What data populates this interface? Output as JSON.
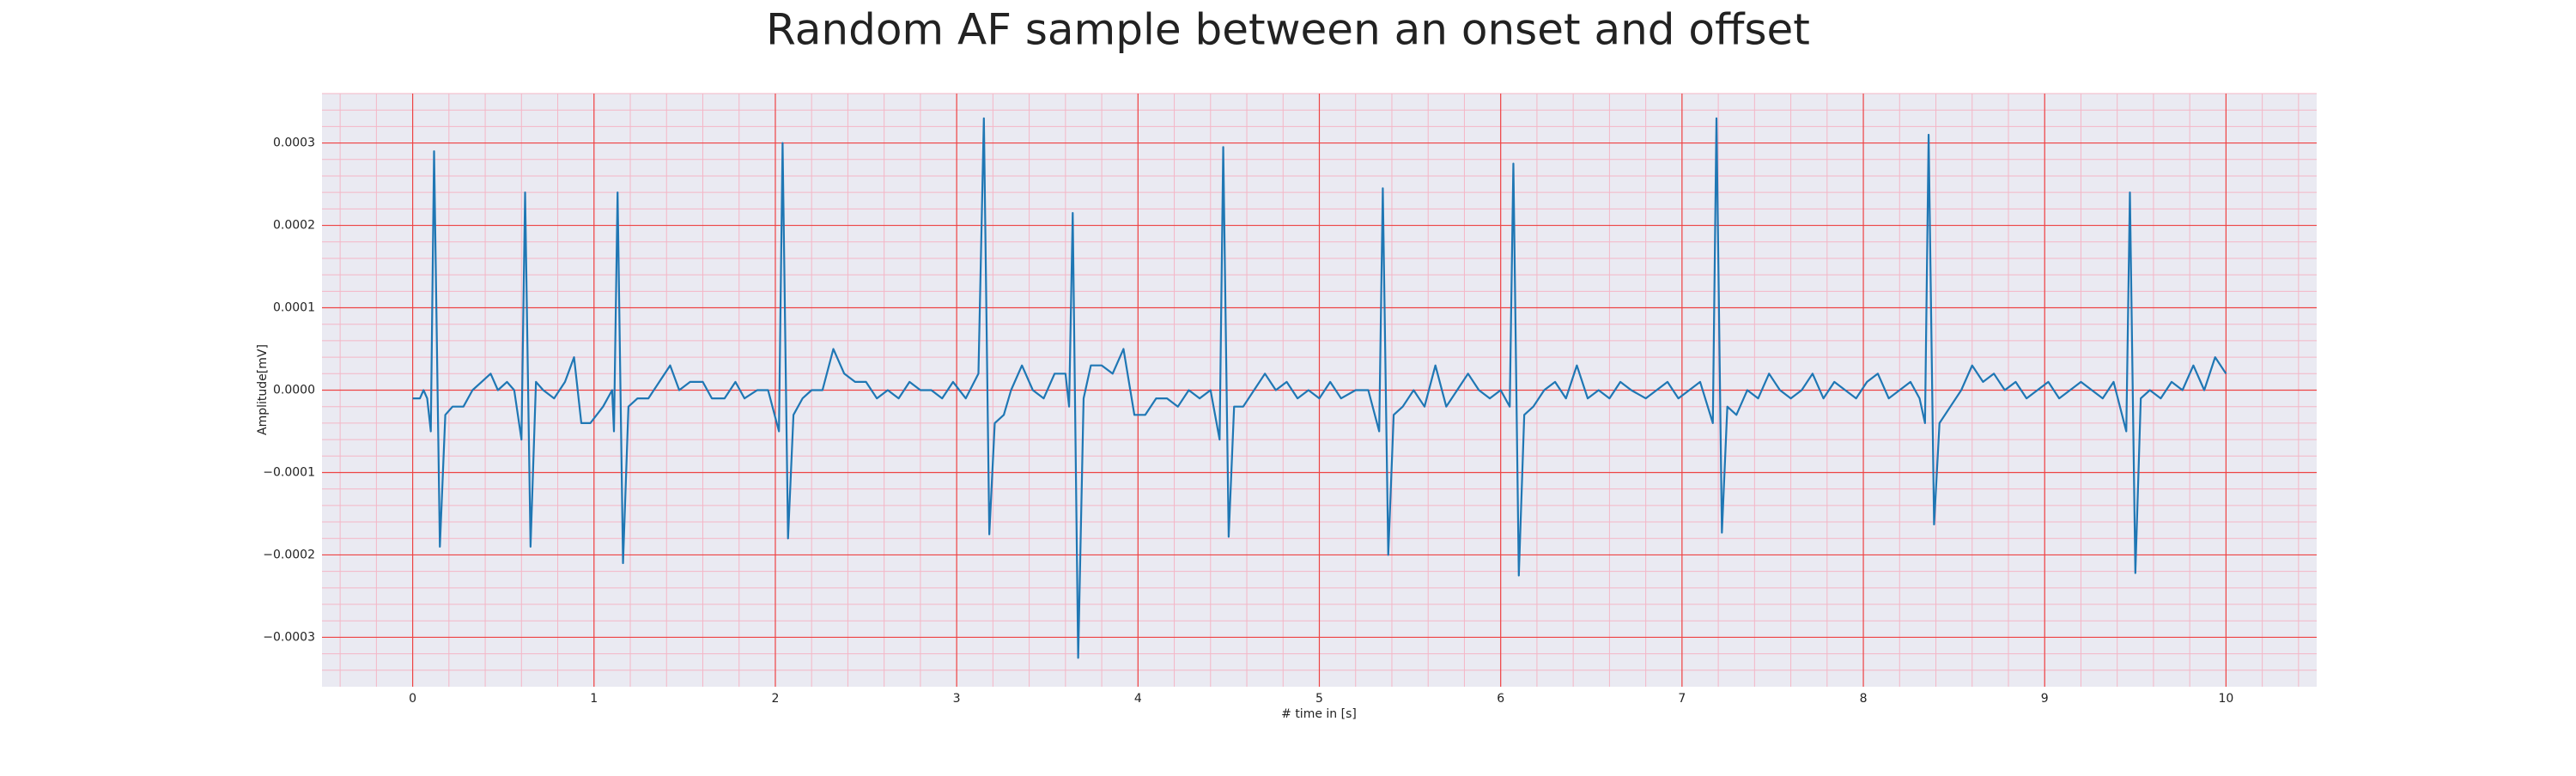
{
  "chart_data": {
    "type": "line",
    "title": "Random AF sample between an onset and offset",
    "xlabel": "# time in [s]",
    "ylabel": "Amplitude[mV]",
    "xlim": [
      -0.5,
      10.5
    ],
    "ylim": [
      -0.00036,
      0.00036
    ],
    "xticks": [
      0,
      1,
      2,
      3,
      4,
      5,
      6,
      7,
      8,
      9,
      10
    ],
    "yticks": [
      {
        "value": -0.0003,
        "label": "−0.0003"
      },
      {
        "value": -0.0002,
        "label": "−0.0002"
      },
      {
        "value": -0.0001,
        "label": "−0.0001"
      },
      {
        "value": 0,
        "label": "0.0000"
      },
      {
        "value": 0.0001,
        "label": "0.0001"
      },
      {
        "value": 0.0002,
        "label": "0.0002"
      },
      {
        "value": 0.0003,
        "label": "0.0003"
      }
    ],
    "grid": true,
    "minor_grid": true,
    "grid_color": "#ee4444",
    "minor_grid_color": "#f4b6c6",
    "background": "#eaeaf2",
    "color": "#1f77b4",
    "x": [
      0.0,
      0.04,
      0.06,
      0.08,
      0.1,
      0.118,
      0.15,
      0.18,
      0.22,
      0.28,
      0.33,
      0.38,
      0.43,
      0.47,
      0.52,
      0.56,
      0.6,
      0.62,
      0.65,
      0.68,
      0.72,
      0.78,
      0.84,
      0.89,
      0.93,
      0.98,
      1.05,
      1.1,
      1.11,
      1.13,
      1.16,
      1.19,
      1.24,
      1.3,
      1.36,
      1.42,
      1.47,
      1.53,
      1.6,
      1.65,
      1.72,
      1.78,
      1.83,
      1.9,
      1.96,
      2.02,
      2.04,
      2.07,
      2.1,
      2.15,
      2.2,
      2.26,
      2.32,
      2.38,
      2.44,
      2.5,
      2.56,
      2.62,
      2.68,
      2.74,
      2.8,
      2.86,
      2.92,
      2.98,
      3.05,
      3.12,
      3.15,
      3.18,
      3.21,
      3.26,
      3.3,
      3.36,
      3.42,
      3.48,
      3.54,
      3.6,
      3.62,
      3.64,
      3.67,
      3.7,
      3.74,
      3.8,
      3.86,
      3.92,
      3.98,
      4.04,
      4.1,
      4.16,
      4.22,
      4.28,
      4.34,
      4.4,
      4.45,
      4.47,
      4.5,
      4.53,
      4.58,
      4.64,
      4.7,
      4.76,
      4.82,
      4.88,
      4.94,
      5.0,
      5.06,
      5.12,
      5.2,
      5.27,
      5.33,
      5.35,
      5.38,
      5.41,
      5.46,
      5.52,
      5.58,
      5.64,
      5.7,
      5.76,
      5.82,
      5.88,
      5.94,
      6.0,
      6.05,
      6.07,
      6.1,
      6.13,
      6.18,
      6.24,
      6.3,
      6.36,
      6.42,
      6.48,
      6.54,
      6.6,
      6.66,
      6.72,
      6.8,
      6.86,
      6.92,
      6.98,
      7.04,
      7.1,
      7.17,
      7.19,
      7.22,
      7.25,
      7.3,
      7.36,
      7.42,
      7.48,
      7.54,
      7.6,
      7.66,
      7.72,
      7.78,
      7.84,
      7.9,
      7.96,
      8.02,
      8.08,
      8.14,
      8.2,
      8.26,
      8.31,
      8.34,
      8.36,
      8.39,
      8.42,
      8.48,
      8.54,
      8.6,
      8.66,
      8.72,
      8.78,
      8.84,
      8.9,
      8.96,
      9.02,
      9.08,
      9.14,
      9.2,
      9.26,
      9.32,
      9.38,
      9.45,
      9.47,
      9.5,
      9.53,
      9.58,
      9.64,
      9.7,
      9.76,
      9.82,
      9.88,
      9.94,
      10.0
    ],
    "values": [
      -1e-05,
      -1e-05,
      0.0,
      -1e-05,
      -5e-05,
      0.00029,
      -0.00019,
      -3e-05,
      -2e-05,
      -2e-05,
      0.0,
      1e-05,
      2e-05,
      0.0,
      1e-05,
      0.0,
      -6e-05,
      0.00024,
      -0.00019,
      1e-05,
      0.0,
      -1e-05,
      1e-05,
      4e-05,
      -4e-05,
      -4e-05,
      -2e-05,
      0.0,
      -5e-05,
      0.00024,
      -0.00021,
      -2e-05,
      -1e-05,
      -1e-05,
      1e-05,
      3e-05,
      0.0,
      1e-05,
      1e-05,
      -1e-05,
      -1e-05,
      1e-05,
      -1e-05,
      0.0,
      0.0,
      -5e-05,
      0.0003,
      -0.00018,
      -3e-05,
      -1e-05,
      0.0,
      0.0,
      5e-05,
      2e-05,
      1e-05,
      1e-05,
      -1e-05,
      0.0,
      -1e-05,
      1e-05,
      0.0,
      0.0,
      -1e-05,
      1e-05,
      -1e-05,
      2e-05,
      0.00033,
      -0.000175,
      -4e-05,
      -3e-05,
      0.0,
      3e-05,
      0.0,
      -1e-05,
      2e-05,
      2e-05,
      -2e-05,
      0.000215,
      -0.000325,
      -1e-05,
      3e-05,
      3e-05,
      2e-05,
      5e-05,
      -3e-05,
      -3e-05,
      -1e-05,
      -1e-05,
      -2e-05,
      0.0,
      -1e-05,
      0.0,
      -6e-05,
      0.000295,
      -0.000178,
      -2e-05,
      -2e-05,
      0.0,
      2e-05,
      0.0,
      1e-05,
      -1e-05,
      0.0,
      -1e-05,
      1e-05,
      -1e-05,
      0.0,
      0.0,
      -5e-05,
      0.000245,
      -0.0002,
      -3e-05,
      -2e-05,
      0.0,
      -2e-05,
      3e-05,
      -2e-05,
      0.0,
      2e-05,
      0.0,
      -1e-05,
      0.0,
      -2e-05,
      0.000275,
      -0.000225,
      -3e-05,
      -2e-05,
      0.0,
      1e-05,
      -1e-05,
      3e-05,
      -1e-05,
      0.0,
      -1e-05,
      1e-05,
      0.0,
      -1e-05,
      0.0,
      1e-05,
      -1e-05,
      0.0,
      1e-05,
      -4e-05,
      0.00033,
      -0.000173,
      -2e-05,
      -3e-05,
      0.0,
      -1e-05,
      2e-05,
      0.0,
      -1e-05,
      0.0,
      2e-05,
      -1e-05,
      1e-05,
      0.0,
      -1e-05,
      1e-05,
      2e-05,
      -1e-05,
      0.0,
      1e-05,
      -1e-05,
      -4e-05,
      0.00031,
      -0.000163,
      -4e-05,
      -2e-05,
      0.0,
      3e-05,
      1e-05,
      2e-05,
      0.0,
      1e-05,
      -1e-05,
      0.0,
      1e-05,
      -1e-05,
      0.0,
      1e-05,
      0.0,
      -1e-05,
      1e-05,
      -5e-05,
      0.00024,
      -0.000222,
      -1e-05,
      0.0,
      -1e-05,
      1e-05,
      0.0,
      3e-05,
      0.0,
      4e-05,
      2e-05
    ]
  }
}
